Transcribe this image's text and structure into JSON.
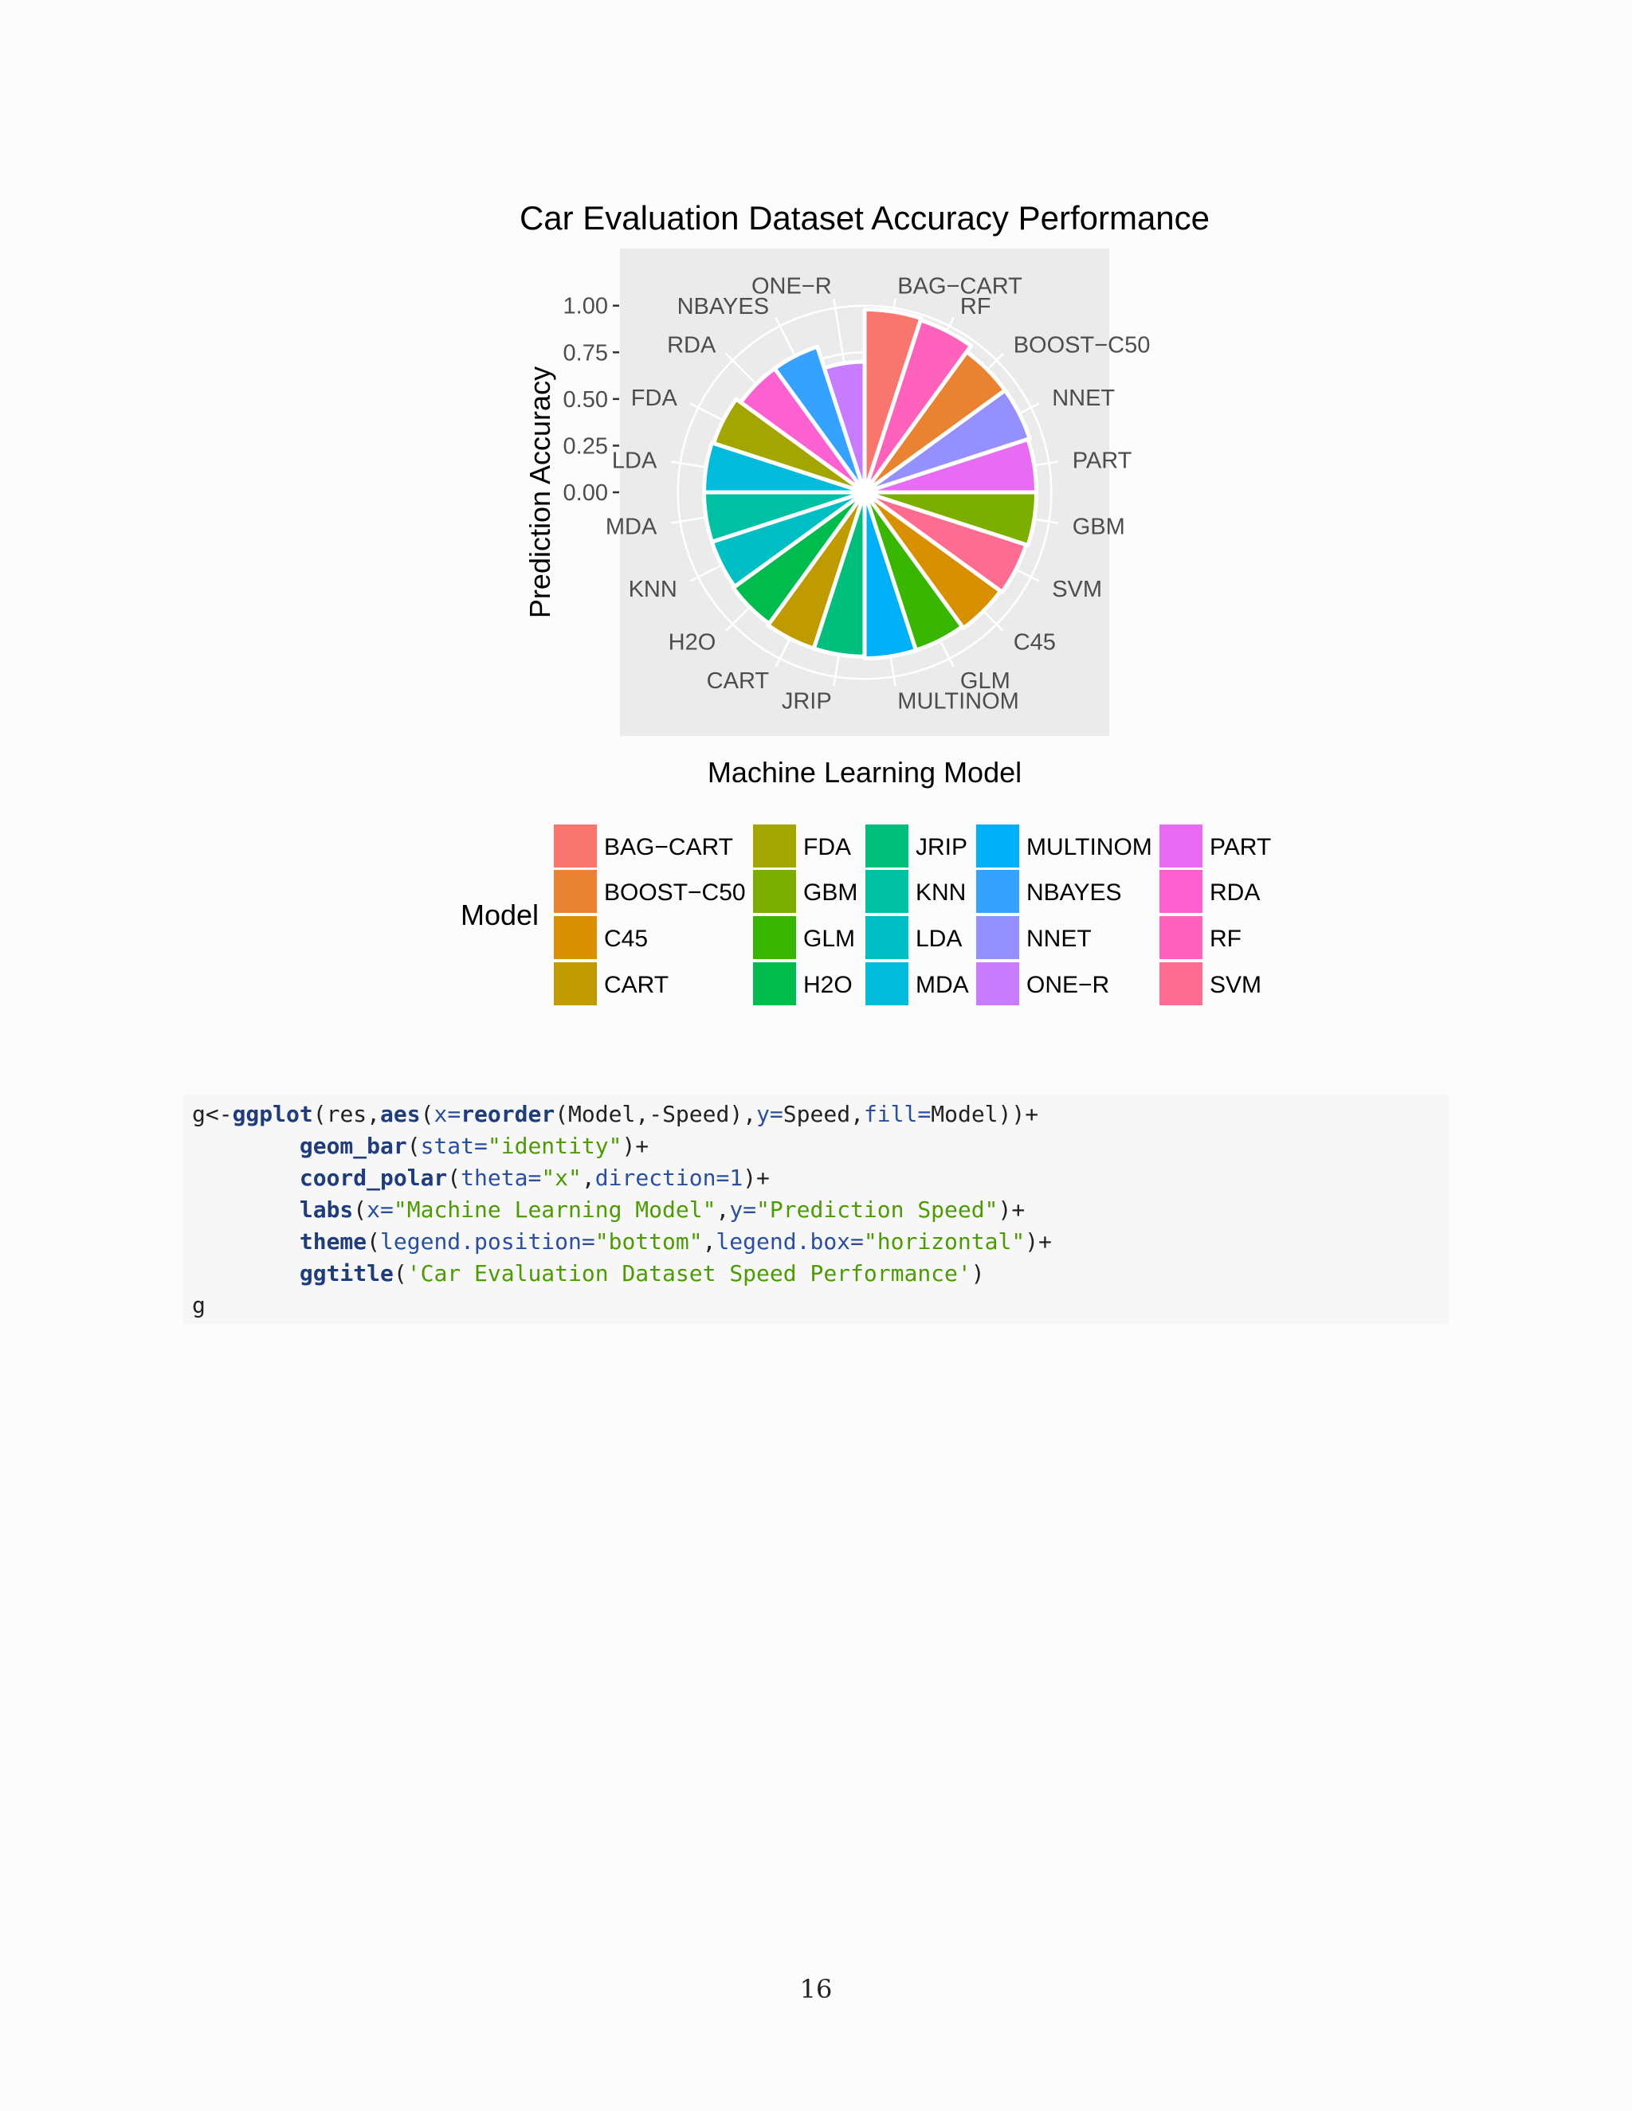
{
  "chart_data": {
    "type": "bar",
    "subtype": "polar-bar (coord_polar)",
    "title": "Car Evaluation Dataset Accuracy Performance",
    "xlabel": "Machine Learning Model",
    "ylabel": "Prediction Accuracy",
    "ylim": [
      0,
      1.05
    ],
    "y_ticks": [
      "0.00",
      "0.25",
      "0.50",
      "0.75",
      "1.00"
    ],
    "grid": true,
    "categories": [
      "BAG−CART",
      "RF",
      "BOOST−C50",
      "NNET",
      "PART",
      "GBM",
      "SVM",
      "C45",
      "GLM",
      "MULTINOM",
      "JRIP",
      "CART",
      "H2O",
      "KNN",
      "MDA",
      "LDA",
      "FDA",
      "RDA",
      "NBAYES",
      "ONE−R"
    ],
    "values": [
      0.98,
      0.97,
      0.93,
      0.93,
      0.92,
      0.92,
      0.91,
      0.9,
      0.89,
      0.89,
      0.88,
      0.88,
      0.87,
      0.86,
      0.86,
      0.86,
      0.85,
      0.82,
      0.82,
      0.7
    ],
    "colors": [
      "#F8766D",
      "#FF62BC",
      "#EA8331",
      "#9590FF",
      "#E76BF3",
      "#7CAE00",
      "#FF6C91",
      "#D89000",
      "#39B600",
      "#00B0F6",
      "#00BF7D",
      "#C09B00",
      "#00BB4E",
      "#00BFC4",
      "#00C1A3",
      "#00BBDA",
      "#A3A500",
      "#FD61D1",
      "#35A2FF",
      "#C77CFF"
    ],
    "legend_title": "Model",
    "legend_position": "bottom",
    "legend_entries": [
      "BAG−CART",
      "BOOST−C50",
      "C45",
      "CART",
      "FDA",
      "GBM",
      "GLM",
      "H2O",
      "JRIP",
      "KNN",
      "LDA",
      "MDA",
      "MULTINOM",
      "NBAYES",
      "NNET",
      "ONE−R",
      "PART",
      "RDA",
      "RF",
      "SVM"
    ],
    "legend_colors": [
      "#F8766D",
      "#EA8331",
      "#D89000",
      "#C09B00",
      "#A3A500",
      "#7CAE00",
      "#39B600",
      "#00BB4E",
      "#00BF7D",
      "#00C1A3",
      "#00BFC4",
      "#00BBDA",
      "#00B0F6",
      "#35A2FF",
      "#9590FF",
      "#C77CFF",
      "#E76BF3",
      "#FD61D1",
      "#FF62BC",
      "#FF6C91"
    ]
  },
  "code": [
    [
      [
        "g<-",
        ""
      ],
      [
        "ggplot",
        "fn"
      ],
      [
        "(res,",
        ""
      ],
      [
        "aes",
        "fn"
      ],
      [
        "(",
        ""
      ],
      [
        "x=",
        "arg"
      ],
      [
        "reorder",
        "fn"
      ],
      [
        "(Model,-Speed),",
        ""
      ],
      [
        "y=",
        "arg"
      ],
      [
        "Speed,",
        ""
      ],
      [
        "fill=",
        "arg"
      ],
      [
        "Model))+",
        ""
      ]
    ],
    [
      [
        "        ",
        ""
      ],
      [
        "geom_bar",
        "fn"
      ],
      [
        "(",
        ""
      ],
      [
        "stat=",
        "arg"
      ],
      [
        "\"identity\"",
        "str"
      ],
      [
        ")+",
        ""
      ]
    ],
    [
      [
        "        ",
        ""
      ],
      [
        "coord_polar",
        "fn"
      ],
      [
        "(",
        ""
      ],
      [
        "theta=",
        "arg"
      ],
      [
        "\"x\"",
        "str"
      ],
      [
        ",",
        ""
      ],
      [
        "direction=",
        "arg"
      ],
      [
        "1",
        "num"
      ],
      [
        ")+",
        ""
      ]
    ],
    [
      [
        "        ",
        ""
      ],
      [
        "labs",
        "fn"
      ],
      [
        "(",
        ""
      ],
      [
        "x=",
        "arg"
      ],
      [
        "\"Machine Learning Model\"",
        "str"
      ],
      [
        ",",
        ""
      ],
      [
        "y=",
        "arg"
      ],
      [
        "\"Prediction Speed\"",
        "str"
      ],
      [
        ")+",
        ""
      ]
    ],
    [
      [
        "        ",
        ""
      ],
      [
        "theme",
        "fn"
      ],
      [
        "(",
        ""
      ],
      [
        "legend.position=",
        "arg"
      ],
      [
        "\"bottom\"",
        "str"
      ],
      [
        ",",
        ""
      ],
      [
        "legend.box=",
        "arg"
      ],
      [
        "\"horizontal\"",
        "str"
      ],
      [
        ")+",
        ""
      ]
    ],
    [
      [
        "        ",
        ""
      ],
      [
        "ggtitle",
        "fn"
      ],
      [
        "(",
        ""
      ],
      [
        "'Car Evaluation Dataset Speed Performance'",
        "str"
      ],
      [
        ")",
        ""
      ]
    ],
    [
      [
        "g",
        ""
      ]
    ]
  ],
  "page_number": "16"
}
